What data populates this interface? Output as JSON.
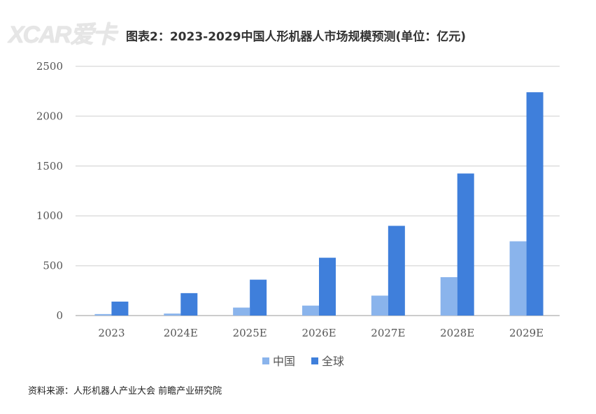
{
  "watermark_logo": "XCAR爱卡",
  "chart_data": {
    "type": "bar",
    "title": "图表2：2023-2029中国人形机器人市场规模预测(单位：亿元)",
    "categories": [
      "2023",
      "2024E",
      "2025E",
      "2026E",
      "2027E",
      "2028E",
      "2029E"
    ],
    "series": [
      {
        "name": "中国",
        "color": "#8ab4ec",
        "values": [
          15,
          20,
          80,
          100,
          200,
          385,
          745
        ]
      },
      {
        "name": "全球",
        "color": "#3f7fdb",
        "values": [
          140,
          225,
          360,
          580,
          900,
          1425,
          2240
        ]
      }
    ],
    "ylim": [
      0,
      2500
    ],
    "yticks": [
      "0",
      "500",
      "1000",
      "1500",
      "2000",
      "2500"
    ],
    "grid": true,
    "legend": "bottom",
    "xlabel": "",
    "ylabel": ""
  },
  "source": "资料来源：人形机器人产业大会 前瞻产业研究院"
}
